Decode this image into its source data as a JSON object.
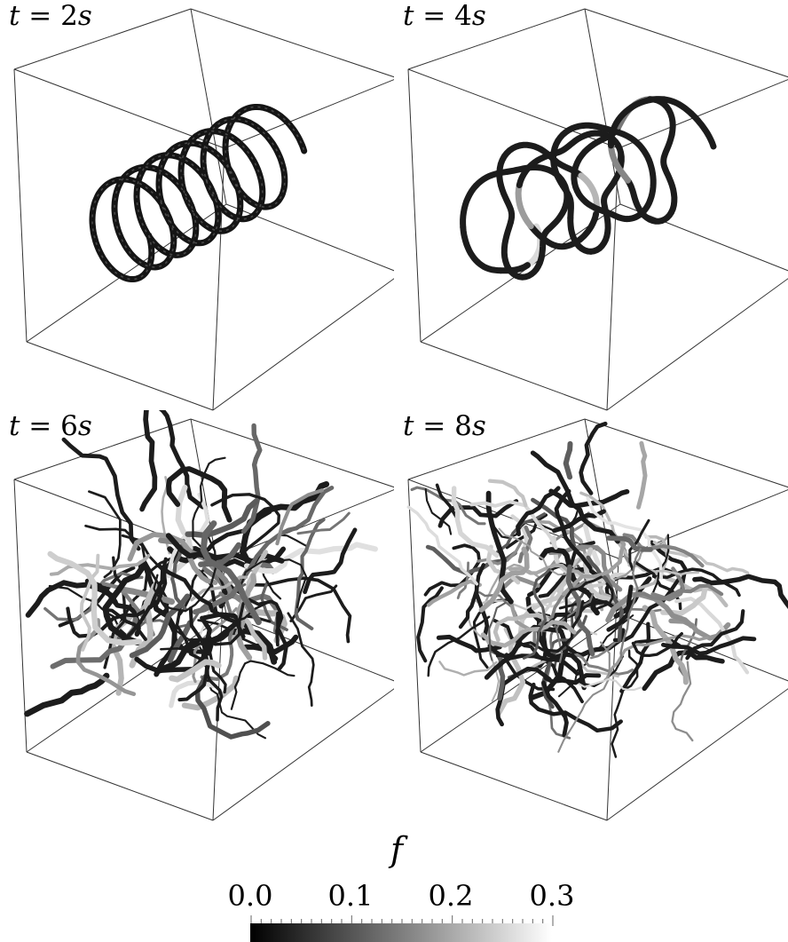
{
  "panels": [
    {
      "label_prefix": "t = ",
      "label_value": "2",
      "label_unit": "s",
      "stage": 0
    },
    {
      "label_prefix": "t = ",
      "label_value": "4",
      "label_unit": "s",
      "stage": 1
    },
    {
      "label_prefix": "t = ",
      "label_value": "6",
      "label_unit": "s",
      "stage": 2
    },
    {
      "label_prefix": "t = ",
      "label_value": "8",
      "label_unit": "s",
      "stage": 3
    }
  ],
  "colorbar": {
    "title": "f",
    "ticks": [
      "0.0",
      "0.1",
      "0.2",
      "0.3"
    ],
    "range": [
      0.0,
      0.3
    ],
    "low_color": "#000000",
    "high_color": "#ffffff"
  },
  "colors": {
    "tube": "#1a1a1a",
    "box_edge": "#333333",
    "background": "#ffffff"
  }
}
